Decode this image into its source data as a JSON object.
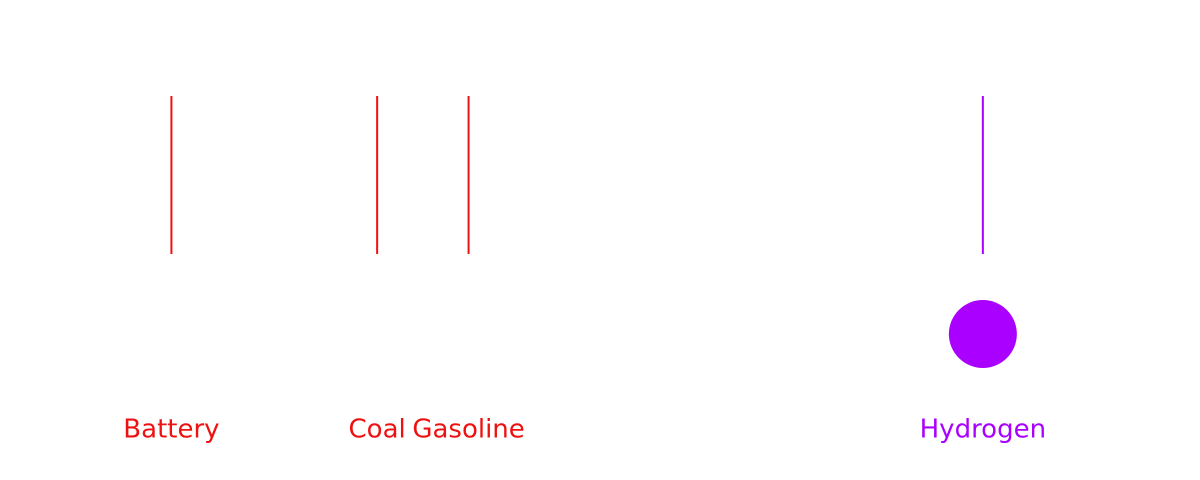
{
  "chart_data": {
    "type": "scatter",
    "categories": [
      "Battery",
      "Coal",
      "Gasoline",
      "Hydrogen"
    ],
    "category_positions": [
      0.5,
      2.3,
      3.1,
      7.6
    ],
    "category_colors": [
      "#ee1111",
      "#ee1111",
      "#ee1111",
      "#aa00ff"
    ],
    "highlighted": [
      "Hydrogen"
    ],
    "highlight_color": "#aa00ff",
    "xlim": [
      -1.0,
      9.5
    ],
    "grid": false
  }
}
